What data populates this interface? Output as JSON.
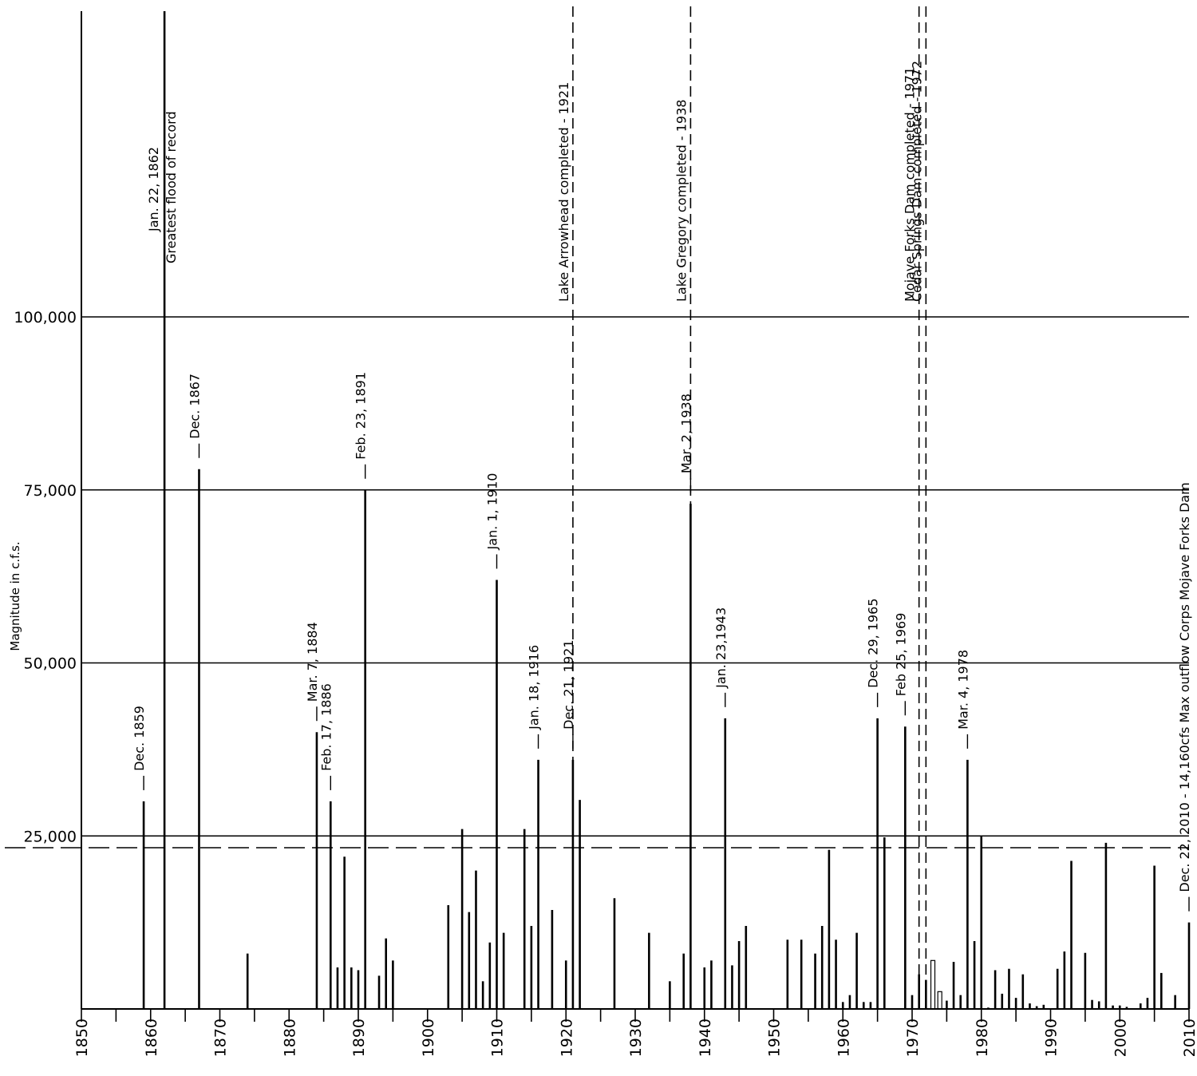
{
  "chart_data": {
    "type": "bar",
    "ylabel": "Magnitude in c.f.s.",
    "xlim": [
      1850,
      2010
    ],
    "ylim": [
      0,
      145000
    ],
    "y_ticks": [
      {
        "value": 25000,
        "label": "25,000"
      },
      {
        "value": 50000,
        "label": "50,000"
      },
      {
        "value": 75000,
        "label": "75,000"
      },
      {
        "value": 100000,
        "label": "100,000"
      }
    ],
    "x_ticks": [
      "1850",
      "1860",
      "1870",
      "1880",
      "1890",
      "1900",
      "1910",
      "1920",
      "1930",
      "1940",
      "1950",
      "1960",
      "1970",
      "1980",
      "1990",
      "2000",
      "2010"
    ],
    "grid": "horizontal at labeled ticks",
    "reference_line": {
      "value": 23300,
      "style": "long-dashed"
    },
    "values": [
      {
        "year": 1859,
        "value": 30000
      },
      {
        "year": 1862,
        "value": 145000
      },
      {
        "year": 1867,
        "value": 78000
      },
      {
        "year": 1874,
        "value": 8000
      },
      {
        "year": 1884,
        "value": 40000
      },
      {
        "year": 1886,
        "value": 30000
      },
      {
        "year": 1887,
        "value": 6000
      },
      {
        "year": 1888,
        "value": 22000
      },
      {
        "year": 1889,
        "value": 6000
      },
      {
        "year": 1890,
        "value": 5600
      },
      {
        "year": 1891,
        "value": 75000
      },
      {
        "year": 1893,
        "value": 4800
      },
      {
        "year": 1894,
        "value": 10200
      },
      {
        "year": 1895,
        "value": 7000
      },
      {
        "year": 1903,
        "value": 15000
      },
      {
        "year": 1905,
        "value": 26000
      },
      {
        "year": 1906,
        "value": 14000
      },
      {
        "year": 1907,
        "value": 20000
      },
      {
        "year": 1908,
        "value": 4000
      },
      {
        "year": 1909,
        "value": 9600
      },
      {
        "year": 1910,
        "value": 62000
      },
      {
        "year": 1911,
        "value": 11000
      },
      {
        "year": 1914,
        "value": 26000
      },
      {
        "year": 1915,
        "value": 12000
      },
      {
        "year": 1916,
        "value": 36000
      },
      {
        "year": 1918,
        "value": 14300
      },
      {
        "year": 1920,
        "value": 7000
      },
      {
        "year": 1921,
        "value": 36000
      },
      {
        "year": 1922,
        "value": 30200
      },
      {
        "year": 1927,
        "value": 16000
      },
      {
        "year": 1932,
        "value": 11000
      },
      {
        "year": 1935,
        "value": 4000
      },
      {
        "year": 1937,
        "value": 8000
      },
      {
        "year": 1938,
        "value": 73000
      },
      {
        "year": 1940,
        "value": 6000
      },
      {
        "year": 1941,
        "value": 7000
      },
      {
        "year": 1943,
        "value": 42000
      },
      {
        "year": 1944,
        "value": 6300
      },
      {
        "year": 1945,
        "value": 9800
      },
      {
        "year": 1946,
        "value": 12000
      },
      {
        "year": 1952,
        "value": 10000
      },
      {
        "year": 1954,
        "value": 10000
      },
      {
        "year": 1956,
        "value": 8000
      },
      {
        "year": 1957,
        "value": 12000
      },
      {
        "year": 1958,
        "value": 23000
      },
      {
        "year": 1959,
        "value": 10000
      },
      {
        "year": 1960,
        "value": 1000
      },
      {
        "year": 1961,
        "value": 2000
      },
      {
        "year": 1962,
        "value": 11000
      },
      {
        "year": 1963,
        "value": 1000
      },
      {
        "year": 1964,
        "value": 1000
      },
      {
        "year": 1965,
        "value": 42000
      },
      {
        "year": 1966,
        "value": 24800
      },
      {
        "year": 1969,
        "value": 40800
      },
      {
        "year": 1970,
        "value": 2000
      },
      {
        "year": 1971,
        "value": 5000
      },
      {
        "year": 1972,
        "value": 4200
      },
      {
        "year": 1973,
        "value": 7000
      },
      {
        "year": 1974,
        "value": 2500
      },
      {
        "year": 1975,
        "value": 1200
      },
      {
        "year": 1976,
        "value": 6800
      },
      {
        "year": 1977,
        "value": 2000
      },
      {
        "year": 1978,
        "value": 36000
      },
      {
        "year": 1979,
        "value": 9800
      },
      {
        "year": 1980,
        "value": 25000
      },
      {
        "year": 1981,
        "value": 200
      },
      {
        "year": 1982,
        "value": 5600
      },
      {
        "year": 1983,
        "value": 2200
      },
      {
        "year": 1984,
        "value": 5800
      },
      {
        "year": 1985,
        "value": 1600
      },
      {
        "year": 1986,
        "value": 5000
      },
      {
        "year": 1987,
        "value": 800
      },
      {
        "year": 1988,
        "value": 400
      },
      {
        "year": 1989,
        "value": 600
      },
      {
        "year": 1991,
        "value": 5800
      },
      {
        "year": 1992,
        "value": 8300
      },
      {
        "year": 1993,
        "value": 21400
      },
      {
        "year": 1995,
        "value": 8100
      },
      {
        "year": 1996,
        "value": 1300
      },
      {
        "year": 1997,
        "value": 1100
      },
      {
        "year": 1998,
        "value": 24000
      },
      {
        "year": 1999,
        "value": 500
      },
      {
        "year": 2000,
        "value": 500
      },
      {
        "year": 2001,
        "value": 300
      },
      {
        "year": 2003,
        "value": 800
      },
      {
        "year": 2004,
        "value": 1600
      },
      {
        "year": 2005,
        "value": 20700
      },
      {
        "year": 2006,
        "value": 5200
      },
      {
        "year": 2008,
        "value": 2000
      },
      {
        "year": 2010,
        "value": 12500
      }
    ],
    "hollow_bars": [
      1973,
      1974
    ],
    "annotations": [
      {
        "year": 1859,
        "lines": [
          "Dec. 1859"
        ]
      },
      {
        "year": 1862,
        "lines": [
          "Jan. 22, 1862",
          "Greatest flood of record"
        ]
      },
      {
        "year": 1867,
        "lines": [
          "Dec. 1867"
        ]
      },
      {
        "year": 1884,
        "lines": [
          "Mar. 7, 1884"
        ]
      },
      {
        "year": 1886,
        "lines": [
          "Feb. 17, 1886"
        ]
      },
      {
        "year": 1891,
        "lines": [
          "Feb. 23, 1891"
        ]
      },
      {
        "year": 1910,
        "lines": [
          "Jan. 1, 1910"
        ]
      },
      {
        "year": 1916,
        "lines": [
          "Jan. 18, 1916"
        ]
      },
      {
        "year": 1921,
        "lines": [
          "Dec. 21, 1921"
        ]
      },
      {
        "year": 1938,
        "lines": [
          "Mar. 2, 1938"
        ]
      },
      {
        "year": 1943,
        "lines": [
          "Jan. 23,1943"
        ]
      },
      {
        "year": 1965,
        "lines": [
          "Dec. 29, 1965"
        ]
      },
      {
        "year": 1969,
        "lines": [
          "Feb 25, 1969"
        ]
      },
      {
        "year": 1978,
        "lines": [
          "Mar. 4, 1978"
        ]
      },
      {
        "year": 2010,
        "lines": [
          "Dec. 22, 2010 - 14,160cfs Max outflow Corps Mojave Forks Dam"
        ]
      }
    ],
    "milestones": [
      {
        "year": 1921,
        "label": "Lake Arrowhead completed - 1921"
      },
      {
        "year": 1938,
        "label": "Lake Gregory completed - 1938"
      },
      {
        "year": 1971,
        "label": "Mojave Forks Dam completed - 1971"
      },
      {
        "year": 1972,
        "label": "Cedar Springs Dam completed - 1972"
      }
    ]
  }
}
